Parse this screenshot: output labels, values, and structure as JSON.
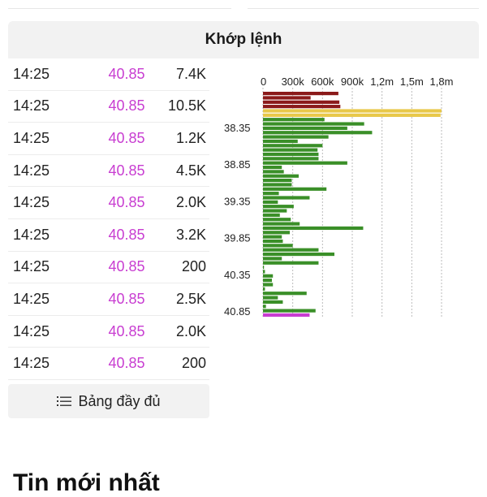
{
  "section": {
    "title": "Khớp lệnh"
  },
  "trades": [
    {
      "time": "14:25",
      "price": "40.85",
      "volume": "7.4K"
    },
    {
      "time": "14:25",
      "price": "40.85",
      "volume": "10.5K"
    },
    {
      "time": "14:25",
      "price": "40.85",
      "volume": "1.2K"
    },
    {
      "time": "14:25",
      "price": "40.85",
      "volume": "4.5K"
    },
    {
      "time": "14:25",
      "price": "40.85",
      "volume": "2.0K"
    },
    {
      "time": "14:25",
      "price": "40.85",
      "volume": "3.2K"
    },
    {
      "time": "14:25",
      "price": "40.85",
      "volume": "200"
    },
    {
      "time": "14:25",
      "price": "40.85",
      "volume": "2.5K"
    },
    {
      "time": "14:25",
      "price": "40.85",
      "volume": "2.0K"
    },
    {
      "time": "14:25",
      "price": "40.85",
      "volume": "200"
    }
  ],
  "full_button": {
    "label": "Bảng đầy đủ",
    "icon": "list-icon"
  },
  "news": {
    "title": "Tin mới nhất"
  },
  "colors": {
    "price": "#c83dd1",
    "sell": "#8b1a1a",
    "reference": "#e8c84a",
    "buy": "#3a8f28",
    "current": "#c83dd1"
  },
  "chart_data": {
    "type": "bar",
    "orientation": "horizontal",
    "x_ticks": [
      "0",
      "300k",
      "600k",
      "900k",
      "1,2m",
      "1,5m",
      "1,8m"
    ],
    "y_ticks": [
      "38.35",
      "38.85",
      "39.35",
      "39.85",
      "40.35",
      "40.85"
    ],
    "xlim": [
      0,
      1800000
    ],
    "grid": true,
    "series": [
      {
        "group": "sell",
        "values": [
          760000,
          480000,
          770000,
          780000
        ]
      },
      {
        "group": "reference",
        "values": [
          1800000,
          1790000
        ]
      },
      {
        "group": "buy",
        "values": [
          620000,
          1020000,
          850000,
          1100000,
          660000,
          350000,
          600000,
          550000,
          560000,
          560000,
          850000,
          190000,
          210000,
          360000,
          290000,
          290000,
          640000,
          160000,
          470000,
          150000,
          310000,
          240000,
          170000,
          280000,
          370000,
          1010000,
          270000,
          190000,
          200000,
          300000,
          560000,
          720000,
          190000,
          560000,
          10000,
          20000,
          100000,
          90000,
          100000,
          20000,
          440000,
          150000,
          200000,
          30000,
          530000
        ]
      },
      {
        "group": "current",
        "values": [
          470000
        ]
      }
    ]
  }
}
